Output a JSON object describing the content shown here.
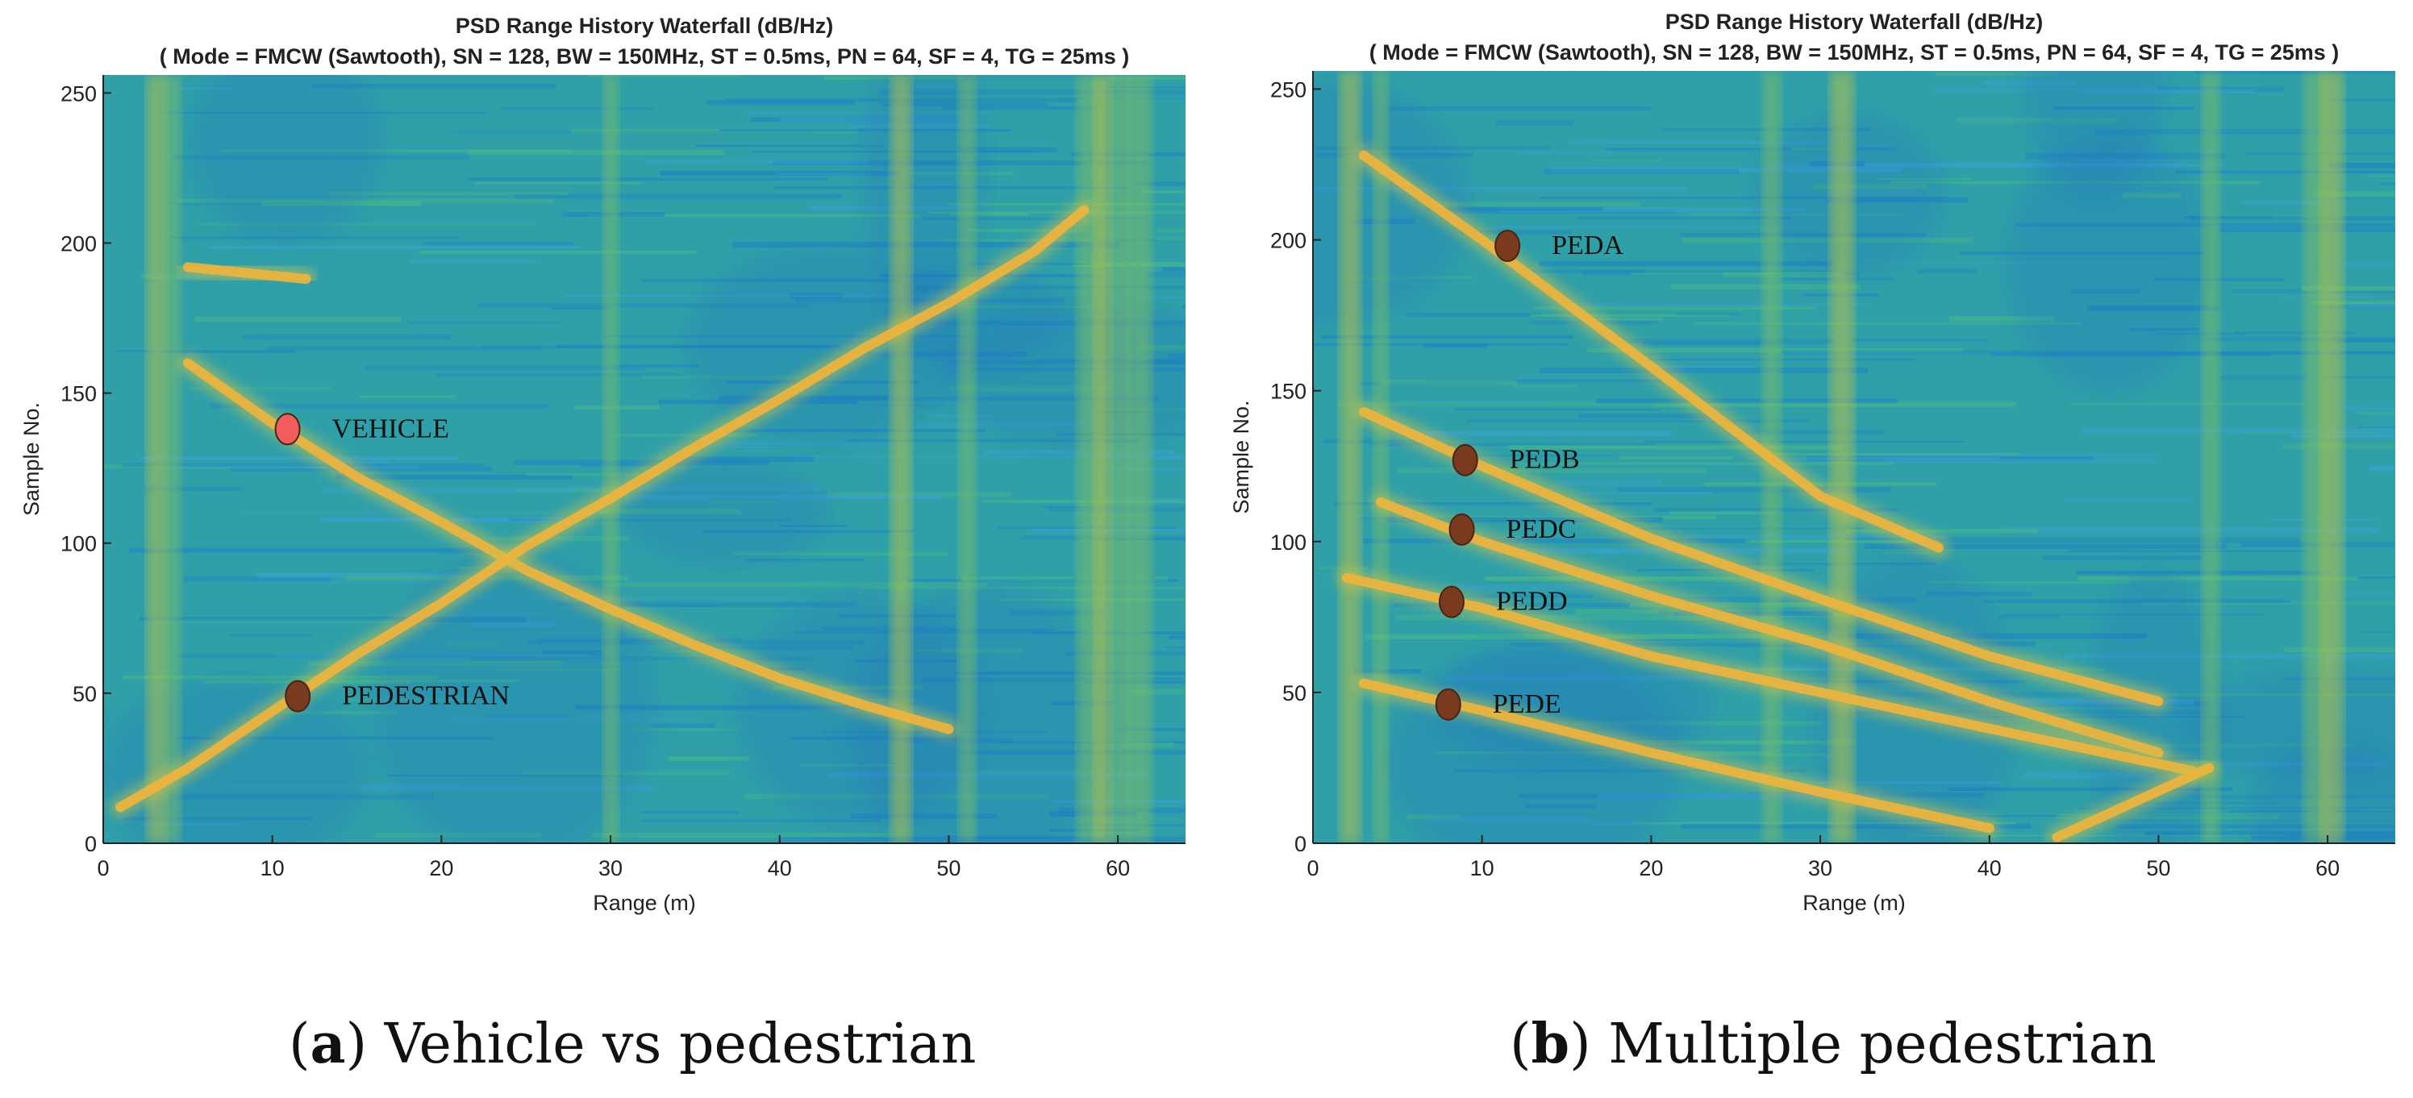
{
  "chart_data": [
    {
      "type": "heatmap",
      "subtype": "range-history waterfall with traced target tracks",
      "title": "PSD Range History Waterfall (dB/Hz)",
      "subtitle": "( Mode = FMCW (Sawtooth), SN = 128, BW = 150MHz, ST = 0.5ms, PN = 64, SF = 4, TG = 25ms )",
      "xlabel": "Range (m)",
      "ylabel": "Sample No.",
      "xlim": [
        0,
        64
      ],
      "ylim": [
        0,
        256
      ],
      "xticks": [
        0,
        10,
        20,
        30,
        40,
        50,
        60
      ],
      "yticks": [
        0,
        50,
        100,
        150,
        200,
        250
      ],
      "grid": false,
      "colormap": "parula",
      "background_color": "#2fa0a8",
      "track_color": "#f0b43c",
      "stationary_clutter_range_m": [
        3,
        4,
        30,
        47,
        51,
        58,
        59,
        60,
        61
      ],
      "tracks": [
        {
          "x": [
            5,
            10,
            15,
            20,
            25,
            30,
            35,
            40,
            45,
            50
          ],
          "y": [
            160,
            140,
            122,
            107,
            91,
            78,
            66,
            55,
            46,
            38
          ]
        },
        {
          "x": [
            1,
            5,
            10,
            15,
            20,
            25,
            30,
            35,
            40,
            45,
            50,
            55,
            58
          ],
          "y": [
            12,
            25,
            44,
            63,
            80,
            99,
            115,
            132,
            148,
            165,
            180,
            197,
            211
          ]
        },
        {
          "x": [
            5,
            12
          ],
          "y": [
            192,
            188
          ]
        }
      ],
      "markers": [
        {
          "label": "VEHICLE",
          "x": 10.9,
          "y": 138,
          "color": "#f25c5c"
        },
        {
          "label": "PEDESTRIAN",
          "x": 11.5,
          "y": 49,
          "color": "#7a3a1e"
        }
      ],
      "caption_letter": "a",
      "caption": "Vehicle vs pedestrian"
    },
    {
      "type": "heatmap",
      "subtype": "range-history waterfall with traced target tracks",
      "title": "PSD Range History Waterfall (dB/Hz)",
      "subtitle": "( Mode = FMCW (Sawtooth), SN = 128, BW = 150MHz, ST = 0.5ms, PN = 64, SF = 4, TG = 25ms )",
      "xlabel": "Range (m)",
      "ylabel": "Sample No.",
      "xlim": [
        0,
        64
      ],
      "ylim": [
        0,
        256
      ],
      "xticks": [
        0,
        10,
        20,
        30,
        40,
        50,
        60
      ],
      "yticks": [
        0,
        50,
        100,
        150,
        200,
        250
      ],
      "grid": false,
      "colormap": "parula",
      "background_color": "#2fa0a8",
      "track_color": "#f0b43c",
      "stationary_clutter_range_m": [
        2,
        4,
        27,
        31,
        53,
        59,
        60
      ],
      "tracks": [
        {
          "x": [
            3,
            10,
            20,
            30,
            37
          ],
          "y": [
            228,
            200,
            158,
            115,
            98
          ]
        },
        {
          "x": [
            3,
            10,
            20,
            30,
            40,
            50
          ],
          "y": [
            143,
            125,
            101,
            81,
            62,
            47
          ]
        },
        {
          "x": [
            4,
            10,
            20,
            30,
            40,
            50
          ],
          "y": [
            113,
            100,
            82,
            66,
            47,
            30
          ]
        },
        {
          "x": [
            2,
            10,
            20,
            30,
            40,
            52
          ],
          "y": [
            88,
            78,
            62,
            50,
            38,
            24
          ]
        },
        {
          "x": [
            3,
            10,
            20,
            30,
            40
          ],
          "y": [
            53,
            44,
            30,
            17,
            5
          ]
        },
        {
          "x": [
            44,
            53
          ],
          "y": [
            2,
            25
          ]
        }
      ],
      "markers": [
        {
          "label": "PEDA",
          "x": 11.5,
          "y": 198,
          "color": "#7a3a1e"
        },
        {
          "label": "PEDB",
          "x": 9.0,
          "y": 127,
          "color": "#7a3a1e"
        },
        {
          "label": "PEDC",
          "x": 8.8,
          "y": 104,
          "color": "#7a3a1e"
        },
        {
          "label": "PEDD",
          "x": 8.2,
          "y": 80,
          "color": "#7a3a1e"
        },
        {
          "label": "PEDE",
          "x": 8.0,
          "y": 46,
          "color": "#7a3a1e"
        }
      ],
      "caption_letter": "b",
      "caption": "Multiple pedestrian"
    }
  ]
}
